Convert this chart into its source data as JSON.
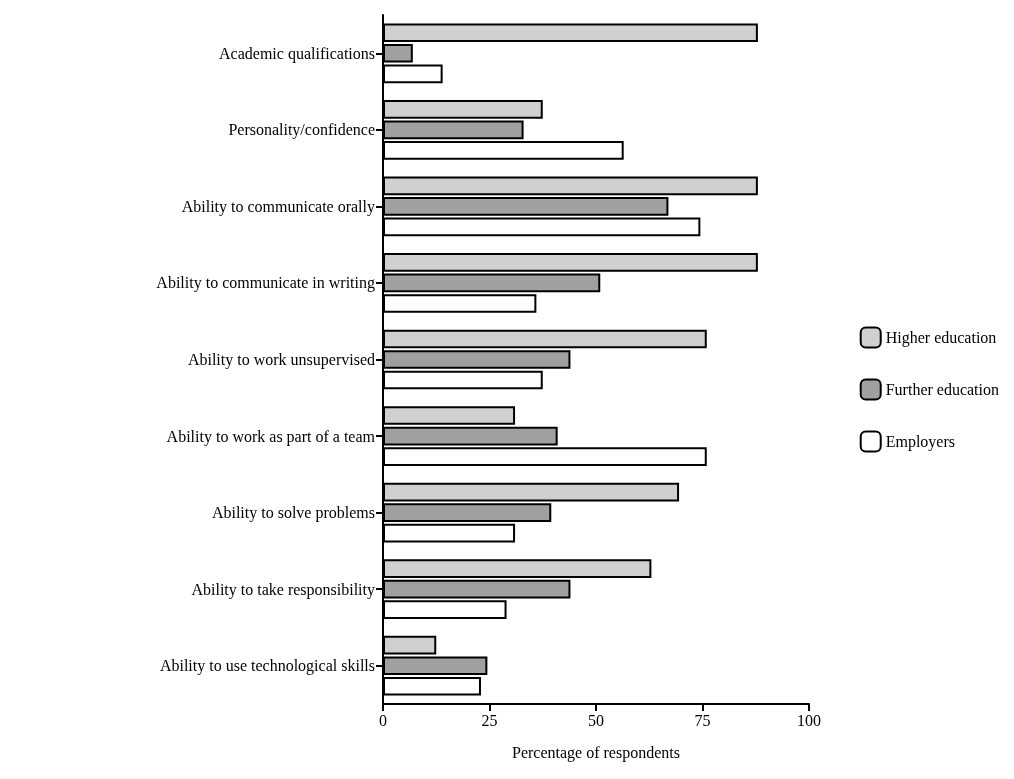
{
  "chart_data": {
    "type": "bar",
    "orientation": "horizontal",
    "xlabel": "Percentage of respondents",
    "categories": [
      "Academic qualifications",
      "Personality/confidence",
      "Ability to communicate orally",
      "Ability to communicate in writing",
      "Ability to work unsupervised",
      "Ability to work as part of a team",
      "Ability to solve problems",
      "Ability to take responsibility",
      "Ability to use technological skills"
    ],
    "series": [
      {
        "name": "Higher education",
        "color": "#d0d0d0",
        "values": [
          88,
          37.5,
          88,
          88,
          76,
          31,
          69.5,
          63,
          12.5
        ]
      },
      {
        "name": "Further education",
        "color": "#a0a0a0",
        "values": [
          7,
          33,
          67,
          51,
          44,
          41,
          39.5,
          44,
          24.5
        ]
      },
      {
        "name": "Employers",
        "color": "#ffffff",
        "values": [
          14,
          56.5,
          74.5,
          36,
          37.5,
          76,
          31,
          29,
          23
        ]
      }
    ],
    "xlim": [
      0,
      100
    ],
    "xticks": [
      0,
      25,
      50,
      75,
      100
    ],
    "grid": false,
    "legend": "right"
  }
}
